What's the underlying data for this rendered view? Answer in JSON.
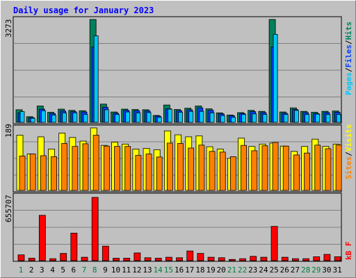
{
  "title": "Daily usage for January 2023",
  "colors": {
    "hits": "#00805c",
    "files": "#0040ff",
    "pages": "#00c8f8",
    "visits": "#ffff00",
    "sites": "#ff8000",
    "kbytes": "#ff0000",
    "weekend": "#008040",
    "weekday": "#000000"
  },
  "legend_top": {
    "pages": "Pages",
    "files": "Files",
    "hits": "Hits",
    "sep": "/"
  },
  "legend_mid": {
    "sites": "Sites",
    "visits": "Visits",
    "sep": "/"
  },
  "legend_bot": {
    "kbytes": "kB F"
  },
  "chart_data": [
    {
      "type": "bar",
      "panel": "hits-files-pages",
      "ymax_label": "3273",
      "ylim": [
        0,
        3273
      ],
      "categories": [
        "1",
        "2",
        "3",
        "4",
        "5",
        "6",
        "7",
        "8",
        "9",
        "10",
        "11",
        "12",
        "13",
        "14",
        "15",
        "16",
        "17",
        "18",
        "19",
        "20",
        "21",
        "22",
        "23",
        "24",
        "25",
        "26",
        "27",
        "28",
        "29",
        "30",
        "31"
      ],
      "weekend_days": [
        1,
        7,
        8,
        14,
        15,
        21,
        22,
        28,
        29
      ],
      "series": [
        {
          "name": "Hits",
          "values": [
            400,
            180,
            520,
            320,
            420,
            380,
            370,
            3273,
            580,
            330,
            420,
            410,
            400,
            220,
            550,
            410,
            450,
            520,
            430,
            300,
            230,
            310,
            380,
            350,
            3273,
            330,
            460,
            350,
            320,
            350,
            360
          ]
        },
        {
          "name": "Files",
          "values": [
            300,
            150,
            420,
            280,
            360,
            340,
            330,
            2400,
            480,
            290,
            380,
            370,
            360,
            200,
            430,
            370,
            400,
            460,
            380,
            270,
            210,
            280,
            340,
            310,
            2400,
            290,
            410,
            310,
            280,
            310,
            320
          ]
        },
        {
          "name": "Pages",
          "values": [
            340,
            130,
            370,
            230,
            300,
            300,
            250,
            2750,
            400,
            250,
            330,
            300,
            310,
            160,
            420,
            320,
            350,
            350,
            300,
            220,
            160,
            250,
            270,
            250,
            2800,
            250,
            380,
            250,
            260,
            250,
            250
          ]
        }
      ]
    },
    {
      "type": "bar",
      "panel": "visits-sites",
      "ymax_label": "189",
      "ylim": [
        0,
        189
      ],
      "categories": [
        "1",
        "2",
        "3",
        "4",
        "5",
        "6",
        "7",
        "8",
        "9",
        "10",
        "11",
        "12",
        "13",
        "14",
        "15",
        "16",
        "17",
        "18",
        "19",
        "20",
        "21",
        "22",
        "23",
        "24",
        "25",
        "26",
        "27",
        "28",
        "29",
        "30",
        "31"
      ],
      "series": [
        {
          "name": "Visits",
          "values": [
            167,
            110,
            162,
            125,
            173,
            160,
            149,
            189,
            136,
            146,
            140,
            125,
            127,
            123,
            180,
            168,
            162,
            165,
            132,
            125,
            97,
            158,
            133,
            140,
            143,
            134,
            118,
            133,
            155,
            133,
            140
          ]
        },
        {
          "name": "Sites",
          "values": [
            104,
            110,
            105,
            102,
            142,
            133,
            141,
            167,
            134,
            133,
            133,
            106,
            110,
            101,
            143,
            142,
            128,
            137,
            118,
            116,
            102,
            136,
            120,
            135,
            145,
            134,
            107,
            113,
            137,
            126,
            137
          ]
        }
      ]
    },
    {
      "type": "bar",
      "panel": "kbytes",
      "ymax_label": "655707",
      "ylim": [
        0,
        655707
      ],
      "categories": [
        "1",
        "2",
        "3",
        "4",
        "5",
        "6",
        "7",
        "8",
        "9",
        "10",
        "11",
        "12",
        "13",
        "14",
        "15",
        "16",
        "17",
        "18",
        "19",
        "20",
        "21",
        "22",
        "23",
        "24",
        "25",
        "26",
        "27",
        "28",
        "29",
        "30",
        "31"
      ],
      "series": [
        {
          "name": "kB F",
          "values": [
            60000,
            25000,
            470000,
            20000,
            75000,
            285000,
            35000,
            655707,
            150000,
            25000,
            25000,
            80000,
            30000,
            25000,
            35000,
            30000,
            100000,
            75000,
            35000,
            30000,
            12000,
            20000,
            45000,
            35000,
            355000,
            35000,
            20000,
            20000,
            40000,
            65000,
            40000
          ]
        }
      ]
    }
  ]
}
